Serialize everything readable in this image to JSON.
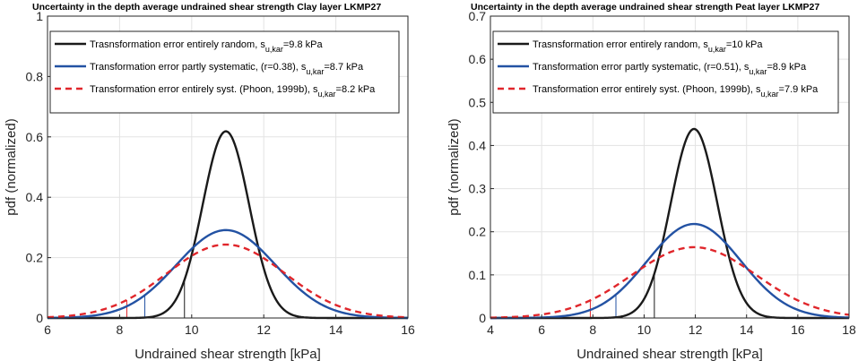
{
  "chart_data": [
    {
      "type": "line",
      "title": "Uncertainty in the depth average undrained shear strength Clay layer LKMP27",
      "xlabel": "Undrained shear strength [kPa]",
      "ylabel": "pdf (normalized)",
      "xlim": [
        6,
        16
      ],
      "ylim": [
        0,
        1
      ],
      "xticks": [
        6,
        8,
        10,
        12,
        14,
        16
      ],
      "yticks": [
        0,
        0.2,
        0.4,
        0.6,
        0.8,
        1
      ],
      "ytick_labels": [
        "0",
        "0.2",
        "0.4",
        "0.6",
        "0.8",
        "1"
      ],
      "grid": true,
      "legend_position": "top-left",
      "series": [
        {
          "name": "Trasnsformation error entirely random, s_u,kar=9.8 kPa",
          "legend_main": "Trasnsformation error entirely random, s",
          "legend_sub": "u,kar",
          "legend_tail": "=9.8 kPa",
          "color": "#1a1a1a",
          "dash": "none",
          "mean": 10.95,
          "sd": 0.645,
          "characteristic": 9.8
        },
        {
          "name": "Transformation error partly systematic, (r=0.38), s_u,kar=8.7 kPa",
          "legend_main": "Transformation error partly systematic, (r=0.38), s",
          "legend_sub": "u,kar",
          "legend_tail": "=8.7 kPa",
          "color": "#2352a3",
          "dash": "none",
          "mean": 10.95,
          "sd": 1.37,
          "characteristic": 8.7
        },
        {
          "name": "Transformation error entirely syst. (Phoon, 1999b), s_u,kar=8.2 kPa",
          "legend_main": "Transformation error entirely syst. (Phoon, 1999b), s",
          "legend_sub": "u,kar",
          "legend_tail": "=8.2 kPa",
          "color": "#e0262b",
          "dash": "7,5",
          "mean": 10.95,
          "sd": 1.64,
          "characteristic": 8.2
        }
      ]
    },
    {
      "type": "line",
      "title": "Uncertainty in the depth average undrained shear strength Peat layer LKMP27",
      "xlabel": "Undrained shear strength [kPa]",
      "ylabel": "pdf (normalized)",
      "xlim": [
        4,
        18
      ],
      "ylim": [
        0,
        0.7
      ],
      "xticks": [
        4,
        6,
        8,
        10,
        12,
        14,
        16,
        18
      ],
      "yticks": [
        0,
        0.1,
        0.2,
        0.3,
        0.4,
        0.5,
        0.6,
        0.7
      ],
      "ytick_labels": [
        "0",
        "0.1",
        "0.2",
        "0.3",
        "0.4",
        "0.5",
        "0.6",
        "0.7"
      ],
      "grid": true,
      "legend_position": "top-left",
      "series": [
        {
          "name": "Trasnsformation error entirely random, s_u,kar=10 kPa",
          "legend_main": "Trasnsformation error entirely random, s",
          "legend_sub": "u,kar",
          "legend_tail": "=10 kPa",
          "color": "#1a1a1a",
          "dash": "none",
          "mean": 11.95,
          "sd": 0.91,
          "characteristic": 10.4
        },
        {
          "name": "Transformation error partly systematic, (r=0.51), s_u,kar=8.9 kPa",
          "legend_main": "Transformation error partly systematic, (r=0.51), s",
          "legend_sub": "u,kar",
          "legend_tail": "=8.9 kPa",
          "color": "#2352a3",
          "dash": "none",
          "mean": 11.95,
          "sd": 1.83,
          "characteristic": 8.9
        },
        {
          "name": "Transformation error entirely syst. (Phoon, 1999b), s_u,kar=7.9 kPa",
          "legend_main": "Transformation error entirely syst. (Phoon, 1999b), s",
          "legend_sub": "u,kar",
          "legend_tail": "=7.9 kPa",
          "color": "#e0262b",
          "dash": "7,5",
          "mean": 11.95,
          "sd": 2.43,
          "characteristic": 7.9
        }
      ]
    }
  ]
}
